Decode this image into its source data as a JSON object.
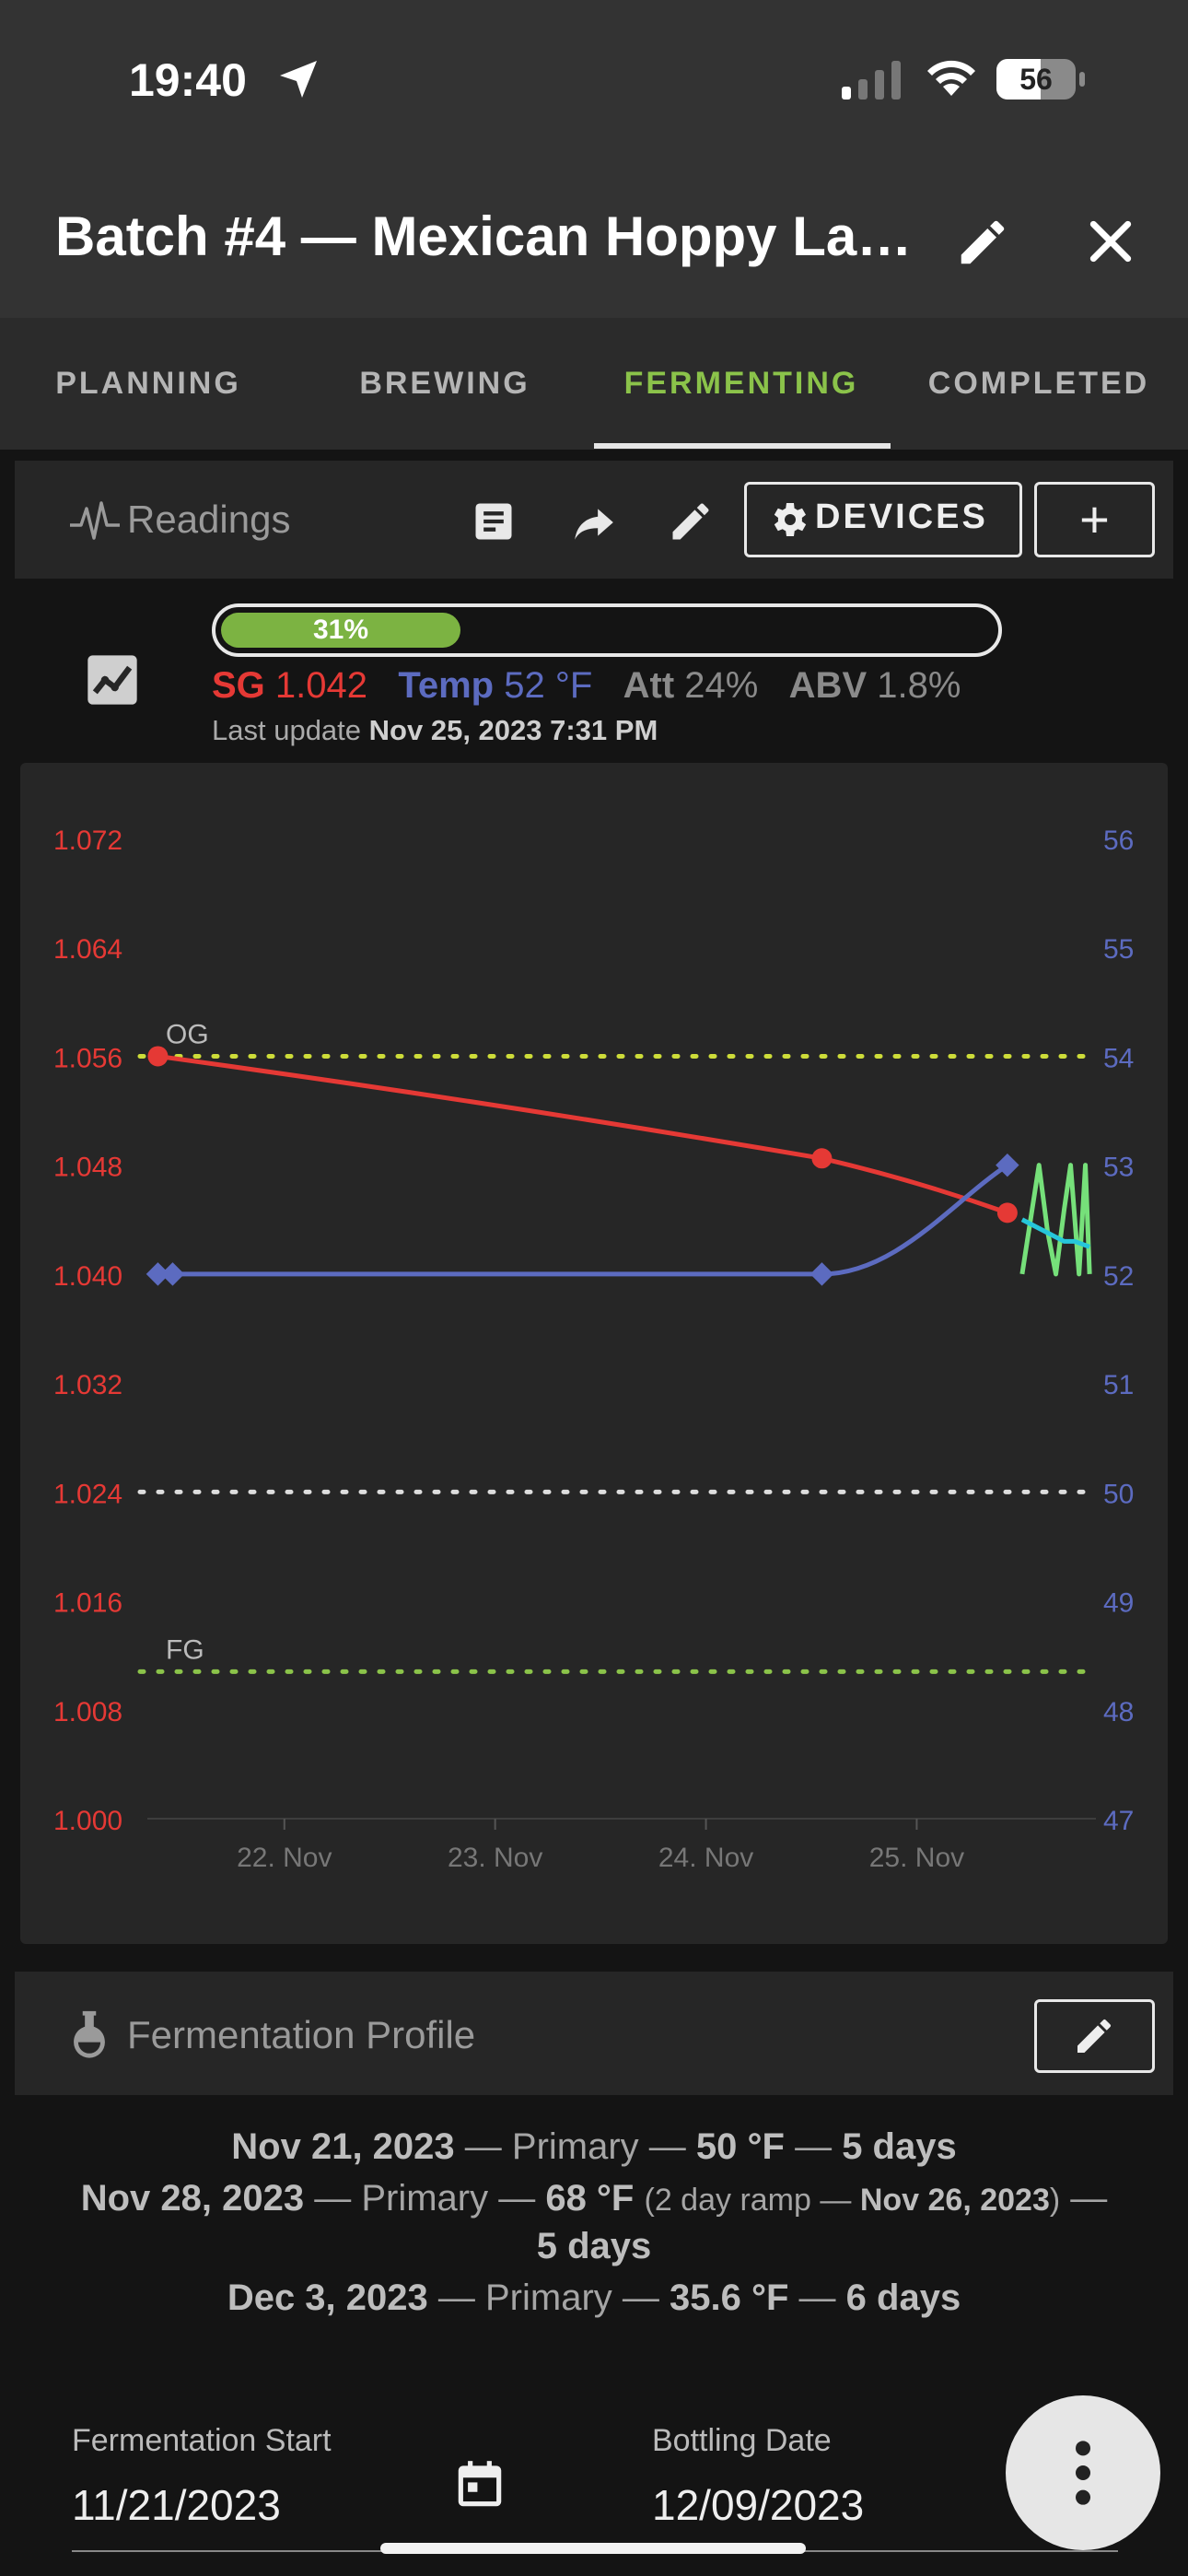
{
  "status_bar": {
    "time": "19:40",
    "battery": "56"
  },
  "header": {
    "title": "Batch #4 — Mexican Hoppy La…",
    "edit_icon": "pencil-icon",
    "close_icon": "close-icon"
  },
  "tabs": [
    {
      "label": "PLANNING",
      "active": false
    },
    {
      "label": "BREWING",
      "active": false
    },
    {
      "label": "FERMENTING",
      "active": true
    },
    {
      "label": "COMPLETED",
      "active": false
    }
  ],
  "readings": {
    "label": "Readings",
    "devices_button": "DEVICES",
    "add_button": "+"
  },
  "summary": {
    "progress_text": "31%",
    "progress_value": 0.31,
    "sg_label": "SG",
    "sg_value": "1.042",
    "temp_label": "Temp",
    "temp_value": "52 °F",
    "att_label": "Att",
    "att_value": "24%",
    "abv_label": "ABV",
    "abv_value": "1.8%",
    "last_update_label": "Last update",
    "last_update_value": "Nov 25, 2023 7:31 PM"
  },
  "chart_data": {
    "type": "line",
    "left_axis": {
      "ticks": [
        "1.072",
        "1.064",
        "1.056",
        "1.048",
        "1.040",
        "1.032",
        "1.024",
        "1.016",
        "1.008",
        "1.000"
      ],
      "range": [
        1.0,
        1.072
      ],
      "color": "#e53935"
    },
    "right_axis": {
      "ticks": [
        "56",
        "55",
        "54",
        "53",
        "52",
        "51",
        "50",
        "49",
        "48",
        "47"
      ],
      "range": [
        47,
        56
      ],
      "color": "#5c6bc0"
    },
    "x_ticks": [
      "22. Nov",
      "23. Nov",
      "24. Nov",
      "25. Nov"
    ],
    "x_range_days": [
      21.35,
      25.85
    ],
    "reference_lines": [
      {
        "label": "OG",
        "value": 1.056,
        "color": "#cddc39"
      },
      {
        "label": "",
        "value": 1.024,
        "color": "#dddddd"
      },
      {
        "label": "FG",
        "value": 1.0108,
        "color": "#8bc34a"
      }
    ],
    "series": [
      {
        "axis": "left",
        "color": "#e53935",
        "points": [
          [
            21.4,
            1.056
          ],
          [
            24.55,
            1.0485
          ],
          [
            25.43,
            1.0445
          ]
        ]
      },
      {
        "axis": "right",
        "color": "#5c6bc0",
        "points": [
          [
            21.4,
            52.0
          ],
          [
            21.47,
            52.0
          ],
          [
            24.55,
            52.0
          ],
          [
            25.43,
            53.0
          ]
        ]
      },
      {
        "axis": "right",
        "color": "#76e07a",
        "points": [
          [
            25.5,
            52.0
          ],
          [
            25.58,
            53.0
          ],
          [
            25.62,
            52.4
          ],
          [
            25.66,
            52.0
          ],
          [
            25.7,
            52.6
          ],
          [
            25.73,
            53.0
          ],
          [
            25.77,
            52.0
          ],
          [
            25.8,
            53.0
          ],
          [
            25.82,
            52.0
          ]
        ]
      },
      {
        "axis": "right",
        "color": "#26c6da",
        "points": [
          [
            25.5,
            52.5
          ],
          [
            25.6,
            52.4
          ],
          [
            25.7,
            52.3
          ],
          [
            25.75,
            52.3
          ],
          [
            25.82,
            52.25
          ]
        ]
      }
    ]
  },
  "fermentation_profile": {
    "label": "Fermentation Profile",
    "steps": [
      {
        "date": "Nov 21, 2023",
        "stage": "Primary",
        "temp": "50 °F",
        "days": "5 days"
      },
      {
        "date": "Nov 28, 2023",
        "stage": "Primary",
        "temp": "68 °F",
        "ramp": "2 day ramp",
        "ramp_date": "Nov 26, 2023",
        "days": "5 days"
      },
      {
        "date": "Dec 3, 2023",
        "stage": "Primary",
        "temp": "35.6 °F",
        "days": "6 days"
      }
    ]
  },
  "fields": {
    "fermentation_start_label": "Fermentation Start",
    "fermentation_start_value": "11/21/2023",
    "bottling_date_label": "Bottling Date",
    "bottling_date_value": "12/09/2023"
  }
}
